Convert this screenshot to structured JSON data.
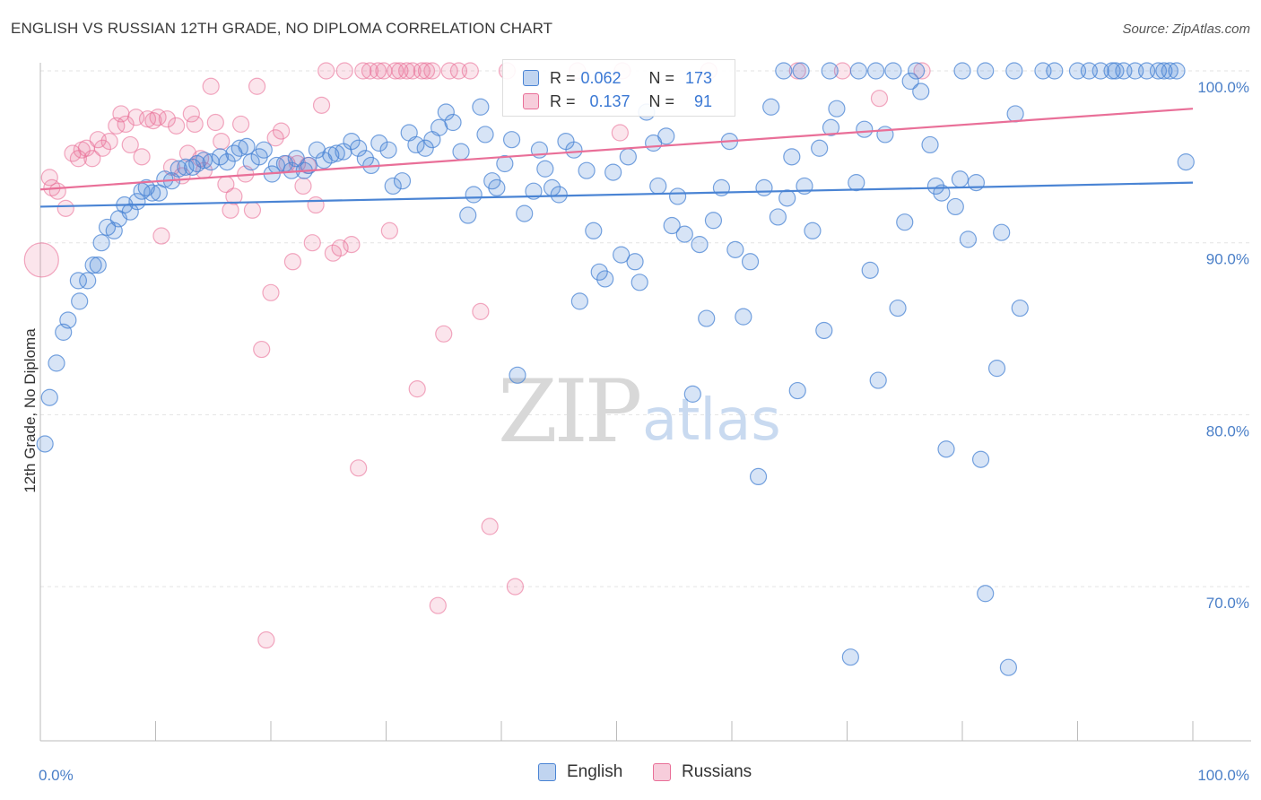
{
  "header": {
    "title": "ENGLISH VS RUSSIAN 12TH GRADE, NO DIPLOMA CORRELATION CHART",
    "source": "Source: ZipAtlas.com"
  },
  "watermark": {
    "zip": "ZIP",
    "atlas": "atlas"
  },
  "legend_top": {
    "rows": [
      {
        "r_label": "R =",
        "r_value": "0.062",
        "n_label": "N =",
        "n_value": "173",
        "color": "#4a84d4"
      },
      {
        "r_label": "R =",
        "r_value": "0.137",
        "n_label": "N =",
        "n_value": "91",
        "color": "#e96f98"
      }
    ]
  },
  "legend_bottom": {
    "english": "English",
    "russians": "Russians"
  },
  "chart_data": {
    "type": "scatter",
    "title": "ENGLISH VS RUSSIAN 12TH GRADE, NO DIPLOMA CORRELATION CHART",
    "xlabel": "",
    "ylabel": "12th Grade, No Diploma",
    "xlim": [
      0,
      100
    ],
    "ylim": [
      61,
      101
    ],
    "x_tick_labels": [
      "0.0%",
      "100.0%"
    ],
    "y_tick_labels": [
      "100.0%",
      "90.0%",
      "80.0%",
      "70.0%"
    ],
    "y_ticks": [
      100,
      90,
      80,
      70
    ],
    "grid": true,
    "legend_position": "top-center",
    "colors": {
      "english": "#4a84d4",
      "russians": "#e96f98"
    },
    "series": [
      {
        "name": "English",
        "trend": [
          [
            0,
            92.1
          ],
          [
            100,
            93.5
          ]
        ],
        "points": [
          [
            0.4,
            78.3
          ],
          [
            0.8,
            81.0
          ],
          [
            1.4,
            83.0
          ],
          [
            2.0,
            84.8
          ],
          [
            2.4,
            85.5
          ],
          [
            3.3,
            87.8
          ],
          [
            3.4,
            86.6
          ],
          [
            4.1,
            87.8
          ],
          [
            4.6,
            88.7
          ],
          [
            5.0,
            88.7
          ],
          [
            5.3,
            90.0
          ],
          [
            5.8,
            90.9
          ],
          [
            6.4,
            90.7
          ],
          [
            6.8,
            91.4
          ],
          [
            7.3,
            92.2
          ],
          [
            7.8,
            91.8
          ],
          [
            8.4,
            92.4
          ],
          [
            8.8,
            93.0
          ],
          [
            9.2,
            93.2
          ],
          [
            9.7,
            92.9
          ],
          [
            10.3,
            92.9
          ],
          [
            10.8,
            93.7
          ],
          [
            11.4,
            93.6
          ],
          [
            12.0,
            94.3
          ],
          [
            12.6,
            94.4
          ],
          [
            13.2,
            94.4
          ],
          [
            13.6,
            94.6
          ],
          [
            14.2,
            94.8
          ],
          [
            14.8,
            94.7
          ],
          [
            15.6,
            95.0
          ],
          [
            16.2,
            94.7
          ],
          [
            16.8,
            95.2
          ],
          [
            17.3,
            95.5
          ],
          [
            17.9,
            95.6
          ],
          [
            18.3,
            94.7
          ],
          [
            19.0,
            95.0
          ],
          [
            19.4,
            95.4
          ],
          [
            20.1,
            94.0
          ],
          [
            20.5,
            94.5
          ],
          [
            21.2,
            94.6
          ],
          [
            21.8,
            94.2
          ],
          [
            22.2,
            94.9
          ],
          [
            22.9,
            94.2
          ],
          [
            23.3,
            94.5
          ],
          [
            24.0,
            95.4
          ],
          [
            24.6,
            94.8
          ],
          [
            25.2,
            95.1
          ],
          [
            25.7,
            95.2
          ],
          [
            26.3,
            95.3
          ],
          [
            27.0,
            95.9
          ],
          [
            27.6,
            95.5
          ],
          [
            28.2,
            94.9
          ],
          [
            28.7,
            94.5
          ],
          [
            29.4,
            95.8
          ],
          [
            30.2,
            95.4
          ],
          [
            30.6,
            93.3
          ],
          [
            31.4,
            93.6
          ],
          [
            32.0,
            96.4
          ],
          [
            32.6,
            95.7
          ],
          [
            33.4,
            95.5
          ],
          [
            34.0,
            96.0
          ],
          [
            34.6,
            96.7
          ],
          [
            35.2,
            97.6
          ],
          [
            35.8,
            97.0
          ],
          [
            36.5,
            95.3
          ],
          [
            37.1,
            91.6
          ],
          [
            37.6,
            92.8
          ],
          [
            38.2,
            97.9
          ],
          [
            38.6,
            96.3
          ],
          [
            39.2,
            93.6
          ],
          [
            39.6,
            93.2
          ],
          [
            40.3,
            94.6
          ],
          [
            40.9,
            96.0
          ],
          [
            41.4,
            82.3
          ],
          [
            42.0,
            91.7
          ],
          [
            42.8,
            93.0
          ],
          [
            43.3,
            95.4
          ],
          [
            43.8,
            94.3
          ],
          [
            44.4,
            93.2
          ],
          [
            45.0,
            92.8
          ],
          [
            45.6,
            95.9
          ],
          [
            46.3,
            95.4
          ],
          [
            46.8,
            86.6
          ],
          [
            47.4,
            94.2
          ],
          [
            48.0,
            90.7
          ],
          [
            48.5,
            88.3
          ],
          [
            49.0,
            87.9
          ],
          [
            49.7,
            94.1
          ],
          [
            50.4,
            89.3
          ],
          [
            51.0,
            95.0
          ],
          [
            51.6,
            88.9
          ],
          [
            52.0,
            87.7
          ],
          [
            52.6,
            97.6
          ],
          [
            53.2,
            95.8
          ],
          [
            53.6,
            93.3
          ],
          [
            54.3,
            96.2
          ],
          [
            54.8,
            91.0
          ],
          [
            55.3,
            92.7
          ],
          [
            55.9,
            90.5
          ],
          [
            56.6,
            81.2
          ],
          [
            57.2,
            89.9
          ],
          [
            57.8,
            85.6
          ],
          [
            58.4,
            91.3
          ],
          [
            59.1,
            93.2
          ],
          [
            59.8,
            95.9
          ],
          [
            60.3,
            89.6
          ],
          [
            61.0,
            85.7
          ],
          [
            61.6,
            88.9
          ],
          [
            62.3,
            76.4
          ],
          [
            62.8,
            93.2
          ],
          [
            63.4,
            97.9
          ],
          [
            64.0,
            91.5
          ],
          [
            64.8,
            92.6
          ],
          [
            65.2,
            95.0
          ],
          [
            65.7,
            81.4
          ],
          [
            66.3,
            93.3
          ],
          [
            67.0,
            90.7
          ],
          [
            67.6,
            95.5
          ],
          [
            68.0,
            84.9
          ],
          [
            68.6,
            96.7
          ],
          [
            69.1,
            97.8
          ],
          [
            70.3,
            65.9
          ],
          [
            70.8,
            93.5
          ],
          [
            71.5,
            96.6
          ],
          [
            72.0,
            88.4
          ],
          [
            72.7,
            82.0
          ],
          [
            73.3,
            96.3
          ],
          [
            74.4,
            86.2
          ],
          [
            75.0,
            91.2
          ],
          [
            75.5,
            99.4
          ],
          [
            76.4,
            98.8
          ],
          [
            77.2,
            95.7
          ],
          [
            77.7,
            93.3
          ],
          [
            78.2,
            92.9
          ],
          [
            78.6,
            78.0
          ],
          [
            79.4,
            92.1
          ],
          [
            79.8,
            93.7
          ],
          [
            80.5,
            90.2
          ],
          [
            81.2,
            93.5
          ],
          [
            81.6,
            77.4
          ],
          [
            82.0,
            69.6
          ],
          [
            83.0,
            82.7
          ],
          [
            83.4,
            90.6
          ],
          [
            84.0,
            65.3
          ],
          [
            84.6,
            97.5
          ],
          [
            85.0,
            86.2
          ],
          [
            90.0,
            100
          ],
          [
            91.0,
            100
          ],
          [
            92.0,
            100
          ],
          [
            93.0,
            100
          ],
          [
            93.3,
            100
          ],
          [
            94.0,
            100
          ],
          [
            95.0,
            100
          ],
          [
            96.0,
            100
          ],
          [
            97.0,
            100
          ],
          [
            97.5,
            100
          ],
          [
            98.0,
            100
          ],
          [
            98.6,
            100
          ],
          [
            99.4,
            94.7
          ],
          [
            64.5,
            100
          ],
          [
            66.0,
            100
          ],
          [
            68.5,
            100
          ],
          [
            71.0,
            100
          ],
          [
            72.5,
            100
          ],
          [
            74.0,
            100
          ],
          [
            76.0,
            100
          ],
          [
            80.0,
            100
          ],
          [
            82.0,
            100
          ],
          [
            84.5,
            100
          ],
          [
            87.0,
            100
          ],
          [
            88.0,
            100
          ]
        ]
      },
      {
        "name": "Russians",
        "trend": [
          [
            0,
            93.1
          ],
          [
            100,
            97.8
          ]
        ],
        "points": [
          [
            0.1,
            89.0
          ],
          [
            0.8,
            93.8
          ],
          [
            1.0,
            93.2
          ],
          [
            1.5,
            93.0
          ],
          [
            2.2,
            92.0
          ],
          [
            2.8,
            95.2
          ],
          [
            3.3,
            94.9
          ],
          [
            3.6,
            95.4
          ],
          [
            4.0,
            95.5
          ],
          [
            4.5,
            94.9
          ],
          [
            5.0,
            96.0
          ],
          [
            5.4,
            95.5
          ],
          [
            6.0,
            95.9
          ],
          [
            6.6,
            96.8
          ],
          [
            7.0,
            97.5
          ],
          [
            7.4,
            96.9
          ],
          [
            7.8,
            95.7
          ],
          [
            8.3,
            97.3
          ],
          [
            8.8,
            95.0
          ],
          [
            9.3,
            97.2
          ],
          [
            9.8,
            97.1
          ],
          [
            10.2,
            97.3
          ],
          [
            10.5,
            90.4
          ],
          [
            11.0,
            97.2
          ],
          [
            11.4,
            94.4
          ],
          [
            11.8,
            96.8
          ],
          [
            12.3,
            93.9
          ],
          [
            12.8,
            95.2
          ],
          [
            13.1,
            97.5
          ],
          [
            13.4,
            96.9
          ],
          [
            13.9,
            94.9
          ],
          [
            14.2,
            94.2
          ],
          [
            14.8,
            99.1
          ],
          [
            15.2,
            97.0
          ],
          [
            15.7,
            95.9
          ],
          [
            16.1,
            93.4
          ],
          [
            16.5,
            91.9
          ],
          [
            16.8,
            92.7
          ],
          [
            17.4,
            96.9
          ],
          [
            17.8,
            94.0
          ],
          [
            18.4,
            91.9
          ],
          [
            18.8,
            99.1
          ],
          [
            19.2,
            83.8
          ],
          [
            19.6,
            66.9
          ],
          [
            20.0,
            87.1
          ],
          [
            20.4,
            96.1
          ],
          [
            20.9,
            96.5
          ],
          [
            21.4,
            94.6
          ],
          [
            21.9,
            88.9
          ],
          [
            22.3,
            94.6
          ],
          [
            22.8,
            93.3
          ],
          [
            23.2,
            94.5
          ],
          [
            23.6,
            90.0
          ],
          [
            23.9,
            92.2
          ],
          [
            24.4,
            98.0
          ],
          [
            24.8,
            100
          ],
          [
            25.4,
            89.4
          ],
          [
            26.0,
            89.7
          ],
          [
            26.4,
            100
          ],
          [
            27.0,
            89.9
          ],
          [
            27.6,
            76.9
          ],
          [
            28.0,
            100
          ],
          [
            28.6,
            100
          ],
          [
            29.3,
            100
          ],
          [
            29.8,
            100
          ],
          [
            30.3,
            90.7
          ],
          [
            30.8,
            100
          ],
          [
            31.2,
            100
          ],
          [
            31.8,
            100
          ],
          [
            32.3,
            100
          ],
          [
            32.7,
            81.5
          ],
          [
            33.1,
            100
          ],
          [
            33.5,
            100
          ],
          [
            34.0,
            100
          ],
          [
            34.5,
            68.9
          ],
          [
            35.0,
            84.7
          ],
          [
            35.5,
            100
          ],
          [
            36.3,
            100
          ],
          [
            37.3,
            100
          ],
          [
            38.2,
            86.0
          ],
          [
            39.0,
            73.5
          ],
          [
            40.5,
            100
          ],
          [
            41.2,
            70.0
          ],
          [
            46.6,
            100
          ],
          [
            50.3,
            96.4
          ],
          [
            50.5,
            100
          ],
          [
            58.0,
            100
          ],
          [
            65.7,
            100
          ],
          [
            69.6,
            100
          ],
          [
            72.8,
            98.4
          ],
          [
            76.5,
            100
          ]
        ]
      }
    ]
  }
}
